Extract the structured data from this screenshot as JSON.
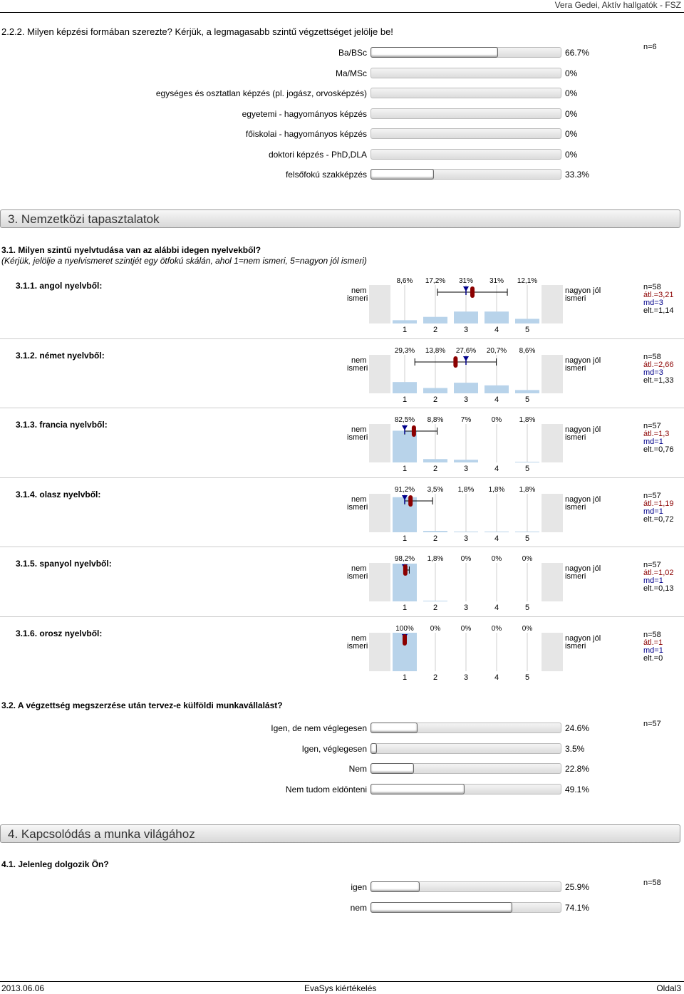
{
  "header": {
    "right": "Vera Gedei, Aktív hallgatók - FSZ"
  },
  "q222": {
    "title": "2.2.2. Milyen képzési formában szerezte? Kérjük, a legmagasabb szintű végzettséget jelölje be!",
    "n": "n=6",
    "rows": [
      {
        "label": "Ba/BSc",
        "pct": "66.7%",
        "value": 66.7
      },
      {
        "label": "Ma/MSc",
        "pct": "0%",
        "value": 0
      },
      {
        "label": "egységes és osztatlan képzés (pl. jogász, orvosképzés)",
        "pct": "0%",
        "value": 0
      },
      {
        "label": "egyetemi - hagyományos képzés",
        "pct": "0%",
        "value": 0
      },
      {
        "label": "főiskolai - hagyományos képzés",
        "pct": "0%",
        "value": 0
      },
      {
        "label": "doktori képzés - PhD,DLA",
        "pct": "0%",
        "value": 0
      },
      {
        "label": "felsőfokú szakképzés",
        "pct": "33.3%",
        "value": 33.3
      }
    ]
  },
  "section3": {
    "title": "3. Nemzetközi tapasztalatok"
  },
  "q31": {
    "title": "3.1. Milyen szintű nyelvtudása van az alábbi idegen nyelvekből?",
    "subtitle": "(Kérjük, jelölje a nyelvismeret szintjét egy ötfokú skálán, ahol 1=nem ismeri, 5=nagyon jól ismeri)"
  },
  "scale": {
    "left1": "nem",
    "left2": "ismeri",
    "right1": "nagyon jól",
    "right2": "ismeri",
    "ticks": [
      "1",
      "2",
      "3",
      "4",
      "5"
    ]
  },
  "languages": [
    {
      "title": "3.1.1. angol nyelvből:",
      "pcts": [
        "8,6%",
        "17,2%",
        "31%",
        "31%",
        "12,1%"
      ],
      "values": [
        8.6,
        17.2,
        31,
        31,
        12.1
      ],
      "mean": 3.21,
      "sd": 1.14,
      "median": 3,
      "n": "n=58",
      "avg": "átl.=3,21",
      "md": "md=3",
      "dev": "elt.=1,14"
    },
    {
      "title": "3.1.2. német nyelvből:",
      "pcts": [
        "29,3%",
        "13,8%",
        "27,6%",
        "20,7%",
        "8,6%"
      ],
      "values": [
        29.3,
        13.8,
        27.6,
        20.7,
        8.6
      ],
      "mean": 2.66,
      "sd": 1.33,
      "median": 3,
      "n": "n=58",
      "avg": "átl.=2,66",
      "md": "md=3",
      "dev": "elt.=1,33"
    },
    {
      "title": "3.1.3. francia nyelvből:",
      "pcts": [
        "82,5%",
        "8,8%",
        "7%",
        "0%",
        "1,8%"
      ],
      "values": [
        82.5,
        8.8,
        7,
        0,
        1.8
      ],
      "mean": 1.3,
      "sd": 0.76,
      "median": 1,
      "n": "n=57",
      "avg": "átl.=1,3",
      "md": "md=1",
      "dev": "elt.=0,76"
    },
    {
      "title": "3.1.4. olasz nyelvből:",
      "pcts": [
        "91,2%",
        "3,5%",
        "1,8%",
        "1,8%",
        "1,8%"
      ],
      "values": [
        91.2,
        3.5,
        1.8,
        1.8,
        1.8
      ],
      "mean": 1.19,
      "sd": 0.72,
      "median": 1,
      "n": "n=57",
      "avg": "átl.=1,19",
      "md": "md=1",
      "dev": "elt.=0,72"
    },
    {
      "title": "3.1.5. spanyol nyelvből:",
      "pcts": [
        "98,2%",
        "1,8%",
        "0%",
        "0%",
        "0%"
      ],
      "values": [
        98.2,
        1.8,
        0,
        0,
        0
      ],
      "mean": 1.02,
      "sd": 0.13,
      "median": 1,
      "n": "n=57",
      "avg": "átl.=1,02",
      "md": "md=1",
      "dev": "elt.=0,13"
    },
    {
      "title": "3.1.6. orosz nyelvből:",
      "pcts": [
        "100%",
        "0%",
        "0%",
        "0%",
        "0%"
      ],
      "values": [
        100,
        0,
        0,
        0,
        0
      ],
      "mean": 1,
      "sd": 0,
      "median": 1,
      "n": "n=58",
      "avg": "átl.=1",
      "md": "md=1",
      "dev": "elt.=0"
    }
  ],
  "q32": {
    "title": "3.2. A végzettség megszerzése után tervez-e külföldi munkavállalást?",
    "n": "n=57",
    "rows": [
      {
        "label": "Igen, de nem véglegesen",
        "pct": "24.6%",
        "value": 24.6
      },
      {
        "label": "Igen, véglegesen",
        "pct": "3.5%",
        "value": 3.5
      },
      {
        "label": "Nem",
        "pct": "22.8%",
        "value": 22.8
      },
      {
        "label": "Nem tudom eldönteni",
        "pct": "49.1%",
        "value": 49.1
      }
    ]
  },
  "section4": {
    "title": "4. Kapcsolódás a munka világához"
  },
  "q41": {
    "title": "4.1. Jelenleg dolgozik Ön?",
    "n": "n=58",
    "rows": [
      {
        "label": "igen",
        "pct": "25.9%",
        "value": 25.9
      },
      {
        "label": "nem",
        "pct": "74.1%",
        "value": 74.1
      }
    ]
  },
  "footer": {
    "date": "2013.06.06",
    "center": "EvaSys kiértékelés",
    "page": "Oldal3"
  },
  "colors": {
    "barFill": "#b8d3ea",
    "mean": "#8b0000",
    "median": "#00008b"
  }
}
